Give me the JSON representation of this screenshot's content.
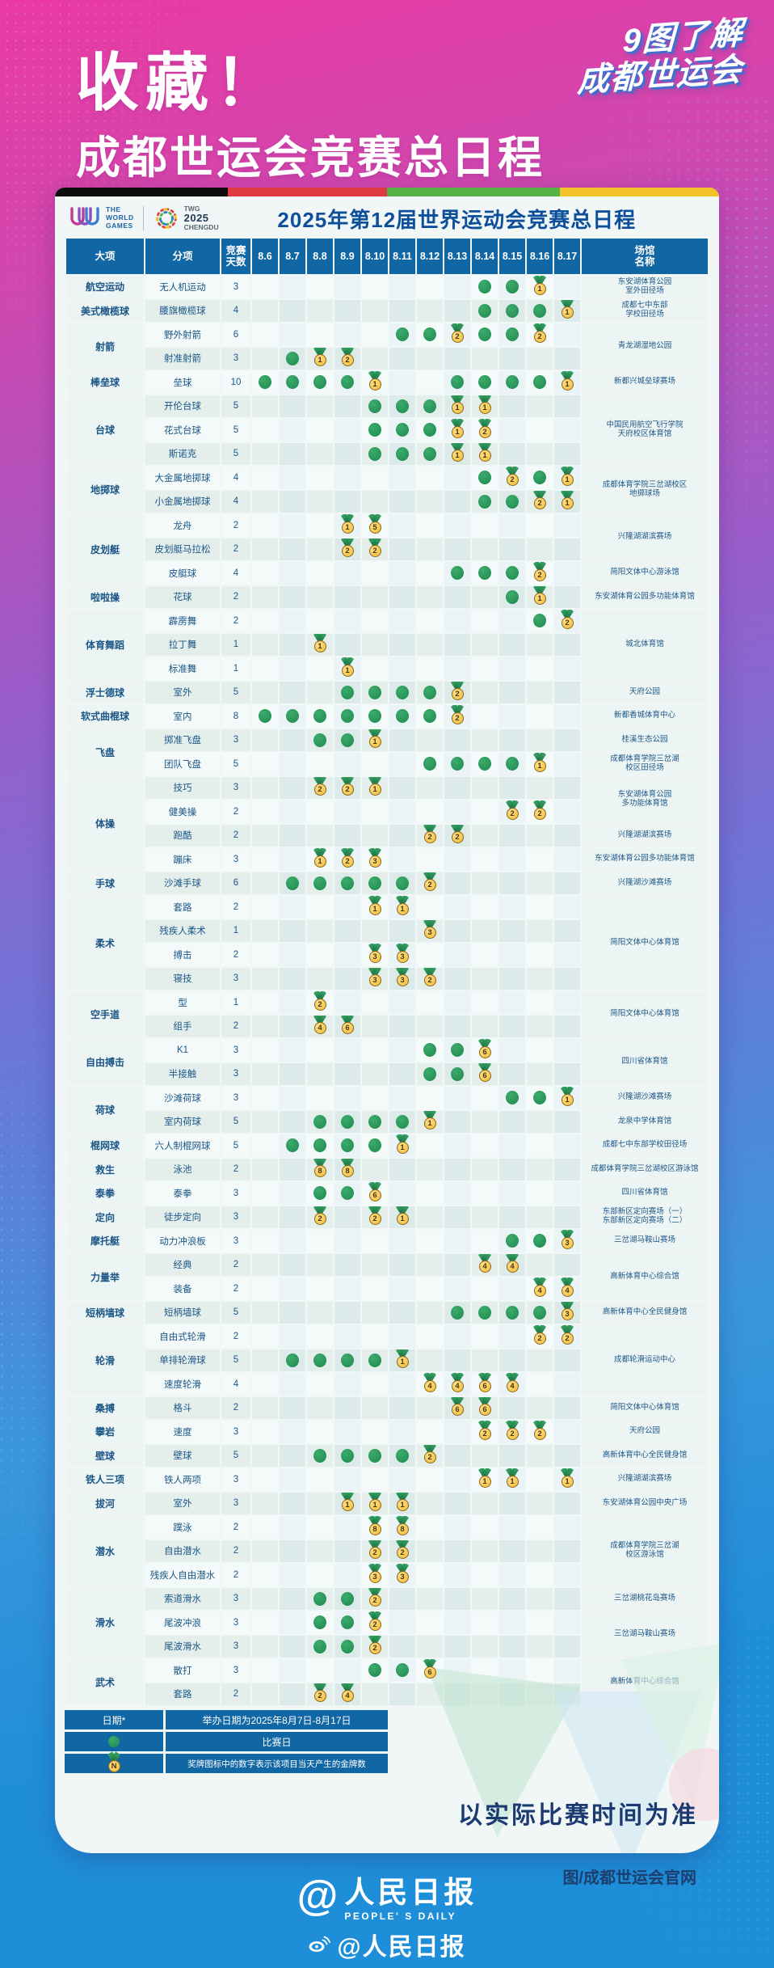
{
  "header": {
    "save_tag": "收藏！",
    "main_title": "成都世运会竞赛总日程",
    "corner_line1": "9图了解",
    "corner_line2": "成都世运会"
  },
  "card": {
    "title": "2025年第12届世界运动会竞赛总日程",
    "logo_world_games": "THE\nWORLD\nGAMES",
    "logo_twg_top": "TWG",
    "logo_twg_year": "2025",
    "logo_twg_city": "CHENGDU",
    "footnote": "以实际比赛时间为准"
  },
  "table": {
    "headers": {
      "major": "大项",
      "sub": "分项",
      "days": "竞赛\n天数",
      "venue": "场馆\n名称"
    },
    "dates": [
      "8.6",
      "8.7",
      "8.8",
      "8.9",
      "8.10",
      "8.11",
      "8.12",
      "8.13",
      "8.14",
      "8.15",
      "8.16",
      "8.17"
    ],
    "groups": [
      {
        "major": "航空运动",
        "rows": [
          {
            "sub": "无人机运动",
            "days": "3",
            "marks": {
              "8.14": "dot",
              "8.15": "dot",
              "8.16": "m1"
            },
            "venue": {
              "text": "东安湖体育公园\n室外田径场",
              "span": 1
            }
          }
        ]
      },
      {
        "major": "美式橄榄球",
        "rows": [
          {
            "sub": "腰旗橄榄球",
            "days": "4",
            "marks": {
              "8.14": "dot",
              "8.15": "dot",
              "8.16": "dot",
              "8.17": "m1"
            },
            "venue": {
              "text": "成都七中东部\n学校田径场",
              "span": 1
            }
          }
        ]
      },
      {
        "major": "射箭",
        "rows": [
          {
            "sub": "野外射箭",
            "days": "6",
            "marks": {
              "8.11": "dot",
              "8.12": "dot",
              "8.13": "m2",
              "8.14": "dot",
              "8.15": "dot",
              "8.16": "m2"
            },
            "venue": {
              "text": "青龙湖湿地公园",
              "span": 2
            }
          },
          {
            "sub": "射准射箭",
            "days": "3",
            "marks": {
              "8.7": "dot",
              "8.8": "m1",
              "8.9": "m2"
            }
          }
        ]
      },
      {
        "major": "棒垒球",
        "rows": [
          {
            "sub": "垒球",
            "days": "10",
            "marks": {
              "8.6": "dot",
              "8.7": "dot",
              "8.8": "dot",
              "8.9": "dot",
              "8.10": "m1",
              "8.13": "dot",
              "8.14": "dot",
              "8.15": "dot",
              "8.16": "dot",
              "8.17": "m1"
            },
            "venue": {
              "text": "新都兴城垒球赛场",
              "span": 1
            }
          }
        ]
      },
      {
        "major": "台球",
        "rows": [
          {
            "sub": "开伦台球",
            "days": "5",
            "marks": {
              "8.10": "dot",
              "8.11": "dot",
              "8.12": "dot",
              "8.13": "m1",
              "8.14": "m1"
            },
            "venue": {
              "text": "中国民用航空飞行学院\n天府校区体育馆",
              "span": 3
            }
          },
          {
            "sub": "花式台球",
            "days": "5",
            "marks": {
              "8.10": "dot",
              "8.11": "dot",
              "8.12": "dot",
              "8.13": "m1",
              "8.14": "m2"
            }
          },
          {
            "sub": "斯诺克",
            "days": "5",
            "marks": {
              "8.10": "dot",
              "8.11": "dot",
              "8.12": "dot",
              "8.13": "m1",
              "8.14": "m1"
            }
          }
        ]
      },
      {
        "major": "地掷球",
        "rows": [
          {
            "sub": "大金属地掷球",
            "days": "4",
            "marks": {
              "8.14": "dot",
              "8.15": "m2",
              "8.16": "dot",
              "8.17": "m1"
            },
            "venue": {
              "text": "成都体育学院三岔湖校区\n地掷球场",
              "span": 2
            }
          },
          {
            "sub": "小金属地掷球",
            "days": "4",
            "marks": {
              "8.14": "dot",
              "8.15": "dot",
              "8.16": "m2",
              "8.17": "m1"
            }
          }
        ]
      },
      {
        "major": "皮划艇",
        "rows": [
          {
            "sub": "龙舟",
            "days": "2",
            "marks": {
              "8.9": "m1",
              "8.10": "m5"
            },
            "venue": {
              "text": "兴隆湖湖滨赛场",
              "span": 2
            }
          },
          {
            "sub": "皮划艇马拉松",
            "days": "2",
            "marks": {
              "8.9": "m2",
              "8.10": "m2"
            }
          },
          {
            "sub": "皮艇球",
            "days": "4",
            "marks": {
              "8.13": "dot",
              "8.14": "dot",
              "8.15": "dot",
              "8.16": "m2"
            },
            "venue": {
              "text": "简阳文体中心游泳馆",
              "span": 1
            }
          }
        ]
      },
      {
        "major": "啦啦操",
        "rows": [
          {
            "sub": "花球",
            "days": "2",
            "marks": {
              "8.15": "dot",
              "8.16": "m1"
            },
            "venue": {
              "text": "东安湖体育公园多功能体育馆",
              "span": 1
            }
          }
        ]
      },
      {
        "major": "体育舞蹈",
        "rows": [
          {
            "sub": "霹雳舞",
            "days": "2",
            "marks": {
              "8.16": "dot",
              "8.17": "m2"
            },
            "venue": {
              "text": "城北体育馆",
              "span": 3
            }
          },
          {
            "sub": "拉丁舞",
            "days": "1",
            "marks": {
              "8.8": "m1"
            }
          },
          {
            "sub": "标准舞",
            "days": "1",
            "marks": {
              "8.9": "m1"
            }
          }
        ]
      },
      {
        "major": "浮士德球",
        "rows": [
          {
            "sub": "室外",
            "days": "5",
            "marks": {
              "8.9": "dot",
              "8.10": "dot",
              "8.11": "dot",
              "8.12": "dot",
              "8.13": "m2"
            },
            "venue": {
              "text": "天府公园",
              "span": 1
            }
          }
        ]
      },
      {
        "major": "软式曲棍球",
        "rows": [
          {
            "sub": "室内",
            "days": "8",
            "marks": {
              "8.6": "dot",
              "8.7": "dot",
              "8.8": "dot",
              "8.9": "dot",
              "8.10": "dot",
              "8.11": "dot",
              "8.12": "dot",
              "8.13": "m2"
            },
            "venue": {
              "text": "新都香城体育中心",
              "span": 1
            }
          }
        ]
      },
      {
        "major": "飞盘",
        "rows": [
          {
            "sub": "掷准飞盘",
            "days": "3",
            "marks": {
              "8.8": "dot",
              "8.9": "dot",
              "8.10": "m1"
            },
            "venue": {
              "text": "桂溪生态公园",
              "span": 1
            }
          },
          {
            "sub": "团队飞盘",
            "days": "5",
            "marks": {
              "8.12": "dot",
              "8.13": "dot",
              "8.14": "dot",
              "8.15": "dot",
              "8.16": "m1"
            },
            "venue": {
              "text": "成都体育学院三岔湖\n校区田径场",
              "span": 1
            }
          }
        ]
      },
      {
        "major": "体操",
        "rows": [
          {
            "sub": "技巧",
            "days": "3",
            "marks": {
              "8.8": "m2",
              "8.9": "m2",
              "8.10": "m1"
            },
            "venue": {
              "text": "东安湖体育公园\n多功能体育馆",
              "span": 2
            }
          },
          {
            "sub": "健美操",
            "days": "2",
            "marks": {
              "8.15": "m2",
              "8.16": "m2"
            }
          },
          {
            "sub": "跑酷",
            "days": "2",
            "marks": {
              "8.12": "m2",
              "8.13": "m2"
            },
            "venue": {
              "text": "兴隆湖湖滨赛场",
              "span": 1
            }
          },
          {
            "sub": "蹦床",
            "days": "3",
            "marks": {
              "8.8": "m1",
              "8.9": "m2",
              "8.10": "m3"
            },
            "venue": {
              "text": "东安湖体育公园多功能体育馆",
              "span": 1
            }
          }
        ]
      },
      {
        "major": "手球",
        "rows": [
          {
            "sub": "沙滩手球",
            "days": "6",
            "marks": {
              "8.7": "dot",
              "8.8": "dot",
              "8.9": "dot",
              "8.10": "dot",
              "8.11": "dot",
              "8.12": "m2"
            },
            "venue": {
              "text": "兴隆湖沙滩赛场",
              "span": 1
            }
          }
        ]
      },
      {
        "major": "柔术",
        "rows": [
          {
            "sub": "套路",
            "days": "2",
            "marks": {
              "8.10": "m1",
              "8.11": "m1"
            },
            "venue": {
              "text": "简阳文体中心体育馆",
              "span": 4
            }
          },
          {
            "sub": "残疾人柔术",
            "days": "1",
            "marks": {
              "8.12": "m3"
            }
          },
          {
            "sub": "搏击",
            "days": "2",
            "marks": {
              "8.10": "m3",
              "8.11": "m3"
            }
          },
          {
            "sub": "寝技",
            "days": "3",
            "marks": {
              "8.10": "m3",
              "8.11": "m3",
              "8.12": "m2"
            }
          }
        ]
      },
      {
        "major": "空手道",
        "rows": [
          {
            "sub": "型",
            "days": "1",
            "marks": {
              "8.8": "m2"
            },
            "venue": {
              "text": "简阳文体中心体育馆",
              "span": 2
            }
          },
          {
            "sub": "组手",
            "days": "2",
            "marks": {
              "8.8": "m4",
              "8.9": "m6"
            }
          }
        ]
      },
      {
        "major": "自由搏击",
        "rows": [
          {
            "sub": "K1",
            "days": "3",
            "marks": {
              "8.12": "dot",
              "8.13": "dot",
              "8.14": "m6"
            },
            "venue": {
              "text": "四川省体育馆",
              "span": 2
            }
          },
          {
            "sub": "半接触",
            "days": "3",
            "marks": {
              "8.12": "dot",
              "8.13": "dot",
              "8.14": "m6"
            }
          }
        ]
      },
      {
        "major": "荷球",
        "rows": [
          {
            "sub": "沙滩荷球",
            "days": "3",
            "marks": {
              "8.15": "dot",
              "8.16": "dot",
              "8.17": "m1"
            },
            "venue": {
              "text": "兴隆湖沙滩赛场",
              "span": 1
            }
          },
          {
            "sub": "室内荷球",
            "days": "5",
            "marks": {
              "8.8": "dot",
              "8.9": "dot",
              "8.10": "dot",
              "8.11": "dot",
              "8.12": "m1"
            },
            "venue": {
              "text": "龙泉中学体育馆",
              "span": 1
            }
          }
        ]
      },
      {
        "major": "棍网球",
        "rows": [
          {
            "sub": "六人制棍网球",
            "days": "5",
            "marks": {
              "8.7": "dot",
              "8.8": "dot",
              "8.9": "dot",
              "8.10": "dot",
              "8.11": "m1"
            },
            "venue": {
              "text": "成都七中东部学校田径场",
              "span": 1
            }
          }
        ]
      },
      {
        "major": "救生",
        "rows": [
          {
            "sub": "泳池",
            "days": "2",
            "marks": {
              "8.8": "m8",
              "8.9": "m8"
            },
            "venue": {
              "text": "成都体育学院三岔湖校区游泳馆",
              "span": 1
            }
          }
        ]
      },
      {
        "major": "泰拳",
        "rows": [
          {
            "sub": "泰拳",
            "days": "3",
            "marks": {
              "8.8": "dot",
              "8.9": "dot",
              "8.10": "m6"
            },
            "venue": {
              "text": "四川省体育馆",
              "span": 1
            }
          }
        ]
      },
      {
        "major": "定向",
        "rows": [
          {
            "sub": "徒步定向",
            "days": "3",
            "marks": {
              "8.8": "m2",
              "8.10": "m2",
              "8.11": "m1"
            },
            "venue": {
              "text": "东部新区定向赛场（一）\n东部新区定向赛场（二）",
              "span": 1
            }
          }
        ]
      },
      {
        "major": "摩托艇",
        "rows": [
          {
            "sub": "动力冲浪板",
            "days": "3",
            "marks": {
              "8.15": "dot",
              "8.16": "dot",
              "8.17": "m3"
            },
            "venue": {
              "text": "三岔湖马鞍山赛场",
              "span": 1
            }
          }
        ]
      },
      {
        "major": "力量举",
        "rows": [
          {
            "sub": "经典",
            "days": "2",
            "marks": {
              "8.14": "m4",
              "8.15": "m4"
            },
            "venue": {
              "text": "高新体育中心综合馆",
              "span": 2
            }
          },
          {
            "sub": "装备",
            "days": "2",
            "marks": {
              "8.16": "m4",
              "8.17": "m4"
            }
          }
        ]
      },
      {
        "major": "短柄墙球",
        "rows": [
          {
            "sub": "短柄墙球",
            "days": "5",
            "marks": {
              "8.13": "dot",
              "8.14": "dot",
              "8.15": "dot",
              "8.16": "dot",
              "8.17": "m3"
            },
            "venue": {
              "text": "高新体育中心全民健身馆",
              "span": 1
            }
          }
        ]
      },
      {
        "major": "轮滑",
        "rows": [
          {
            "sub": "自由式轮滑",
            "days": "2",
            "marks": {
              "8.16": "m2",
              "8.17": "m2"
            },
            "venue": {
              "text": "成都轮滑运动中心",
              "span": 3
            }
          },
          {
            "sub": "单排轮滑球",
            "days": "5",
            "marks": {
              "8.7": "dot",
              "8.8": "dot",
              "8.9": "dot",
              "8.10": "dot",
              "8.11": "m1"
            }
          },
          {
            "sub": "速度轮滑",
            "days": "4",
            "marks": {
              "8.12": "m4",
              "8.13": "m4",
              "8.14": "m6",
              "8.15": "m4"
            }
          }
        ]
      },
      {
        "major": "桑搏",
        "rows": [
          {
            "sub": "格斗",
            "days": "2",
            "marks": {
              "8.13": "m6",
              "8.14": "m6"
            },
            "venue": {
              "text": "简阳文体中心体育馆",
              "span": 1
            }
          }
        ]
      },
      {
        "major": "攀岩",
        "rows": [
          {
            "sub": "速度",
            "days": "3",
            "marks": {
              "8.14": "m2",
              "8.15": "m2",
              "8.16": "m2"
            },
            "venue": {
              "text": "天府公园",
              "span": 1
            }
          }
        ]
      },
      {
        "major": "壁球",
        "rows": [
          {
            "sub": "壁球",
            "days": "5",
            "marks": {
              "8.8": "dot",
              "8.9": "dot",
              "8.10": "dot",
              "8.11": "dot",
              "8.12": "m2"
            },
            "venue": {
              "text": "高新体育中心全民健身馆",
              "span": 1
            }
          }
        ]
      },
      {
        "major": "铁人三项",
        "rows": [
          {
            "sub": "铁人两项",
            "days": "3",
            "marks": {
              "8.14": "m1",
              "8.15": "m1",
              "8.17": "m1"
            },
            "venue": {
              "text": "兴隆湖湖滨赛场",
              "span": 1
            }
          }
        ]
      },
      {
        "major": "拔河",
        "rows": [
          {
            "sub": "室外",
            "days": "3",
            "marks": {
              "8.9": "m1",
              "8.10": "m1",
              "8.11": "m1"
            },
            "venue": {
              "text": "东安湖体育公园中央广场",
              "span": 1
            }
          }
        ]
      },
      {
        "major": "潜水",
        "rows": [
          {
            "sub": "蹼泳",
            "days": "2",
            "marks": {
              "8.10": "m8",
              "8.11": "m8"
            },
            "venue": {
              "text": "成都体育学院三岔湖\n校区游泳馆",
              "span": 3
            }
          },
          {
            "sub": "自由潜水",
            "days": "2",
            "marks": {
              "8.10": "m2",
              "8.11": "m2"
            }
          },
          {
            "sub": "残疾人自由潜水",
            "days": "2",
            "marks": {
              "8.10": "m3",
              "8.11": "m3"
            }
          }
        ]
      },
      {
        "major": "滑水",
        "rows": [
          {
            "sub": "索道滑水",
            "days": "3",
            "marks": {
              "8.8": "dot",
              "8.9": "dot",
              "8.10": "m2"
            },
            "venue": {
              "text": "三岔湖桃花岛赛场",
              "span": 1
            }
          },
          {
            "sub": "尾波冲浪",
            "days": "3",
            "marks": {
              "8.8": "dot",
              "8.9": "dot",
              "8.10": "m2"
            },
            "venue": {
              "text": "三岔湖马鞍山赛场",
              "span": 2
            }
          },
          {
            "sub": "尾波滑水",
            "days": "3",
            "marks": {
              "8.8": "dot",
              "8.9": "dot",
              "8.10": "m2"
            }
          }
        ]
      },
      {
        "major": "武术",
        "rows": [
          {
            "sub": "散打",
            "days": "3",
            "marks": {
              "8.10": "dot",
              "8.11": "dot",
              "8.12": "m6"
            },
            "venue": {
              "text": "高新体育中心综合馆",
              "span": 2
            }
          },
          {
            "sub": "套路",
            "days": "2",
            "marks": {
              "8.8": "m2",
              "8.9": "m4"
            }
          }
        ]
      }
    ]
  },
  "legend": {
    "date_label": "日期*",
    "date_text": "举办日期为2025年8月7日-8月17日",
    "dot_text": "比赛日",
    "medal_letter": "N",
    "medal_text": "奖牌图标中的数字表示该项目当天产生的金牌数"
  },
  "footer": {
    "credit": "图/成都世运会官网",
    "pd_at": "@",
    "pd_name": "人民日报",
    "pd_en": "PEOPLE' S DAILY",
    "weibo_name": "@人民日报"
  },
  "colors": {
    "header_blue": "#1166a4",
    "dot_green": "#1f8a4e",
    "medal_gold": "#f2bb35",
    "bar": [
      "#0d0d0d",
      "#dd3b41",
      "#57b246",
      "#f2c42a"
    ]
  }
}
